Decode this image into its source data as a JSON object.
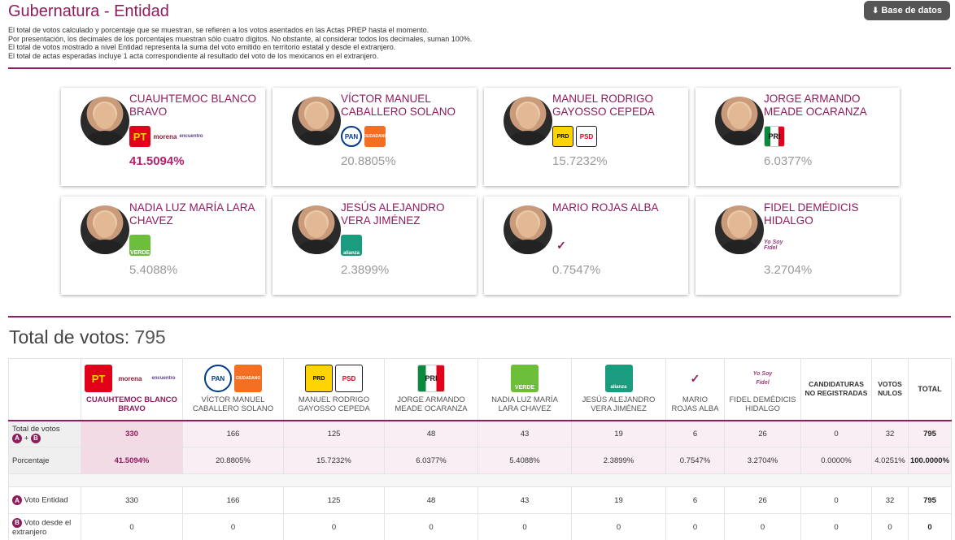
{
  "header": {
    "title_main": "Gubernatura",
    "title_sep": " - ",
    "title_sub": "Entidad",
    "notes": [
      "El total de votos calculado y porcentaje que se muestran, se refieren a los votos asentados en las Actas PREP hasta el momento.",
      "Por presentación, los decimales de los porcentajes muestran sólo cuatro dígitos. No obstante, al considerar todos los decimales, suman 100%.",
      "El total de votos mostrado a nivel Entidad representa la suma del voto emitido en territorio estatal y desde el extranjero.",
      "El total de actas esperadas incluye 1 acta correspondiente al resultado del voto de los mexicanos en el extranjero."
    ],
    "download_icon": "download-icon",
    "download_label": "Base de datos"
  },
  "candidates": [
    {
      "name": "CUAUHTEMOC BLANCO BRAVO",
      "pct": "41.5094%",
      "logos": [
        {
          "type": "pt",
          "text": "PT"
        },
        {
          "type": "morena",
          "text": "morena"
        },
        {
          "type": "pes",
          "text": "encuentro"
        }
      ]
    },
    {
      "name": "VÍCTOR MANUEL CABALLERO SOLANO",
      "pct": "20.8805%",
      "logos": [
        {
          "type": "pan",
          "text": "PAN"
        },
        {
          "type": "mc",
          "text": "CIUDADANO"
        }
      ]
    },
    {
      "name": "MANUEL RODRIGO GAYOSSO CEPEDA",
      "pct": "15.7232%",
      "logos": [
        {
          "type": "prd",
          "text": "PRD"
        },
        {
          "type": "psd",
          "text": "PSD"
        }
      ]
    },
    {
      "name": "JORGE ARMANDO MEADE OCARANZA",
      "pct": "6.0377%",
      "logos": [
        {
          "type": "pri",
          "text": "PRI"
        }
      ]
    },
    {
      "name": "NADIA LUZ MARÍA LARA CHAVEZ",
      "pct": "5.4088%",
      "logos": [
        {
          "type": "verde",
          "text": "VERDE"
        }
      ]
    },
    {
      "name": "JESÚS ALEJANDRO VERA JIMÉNEZ",
      "pct": "2.3899%",
      "logos": [
        {
          "type": "alianza",
          "text": "alianza"
        }
      ]
    },
    {
      "name": "MARIO ROJAS ALBA",
      "pct": "0.7547%",
      "logos": [
        {
          "type": "humanista",
          "text": "✓"
        }
      ]
    },
    {
      "name": "FIDEL DEMÉDICIS HIDALGO",
      "pct": "3.2704%",
      "logos": [
        {
          "type": "yosoy",
          "text": "Yo Soy Fidel"
        }
      ]
    }
  ],
  "totals": {
    "label": "Total de votos:",
    "value": "795"
  },
  "table": {
    "headers": [
      "CUAUHTEMOC BLANCO BRAVO",
      "VÍCTOR MANUEL CABALLERO SOLANO",
      "MANUEL RODRIGO GAYOSSO CEPEDA",
      "JORGE ARMANDO MEADE OCARANZA",
      "NADIA LUZ MARÍA LARA CHAVEZ",
      "JESÚS ALEJANDRO VERA JIMÉNEZ",
      "MARIO ROJAS ALBA",
      "FIDEL DEMÉDICIS HIDALGO",
      "CANDIDATURAS NO REGISTRADAS",
      "VOTOS NULOS",
      "TOTAL"
    ],
    "rows": {
      "total_votos": {
        "label": "Total de votos",
        "badge_a": "A",
        "plus": "+",
        "badge_b": "B",
        "values": [
          "330",
          "166",
          "125",
          "48",
          "43",
          "19",
          "6",
          "26",
          "0",
          "32",
          "795"
        ]
      },
      "porcentaje": {
        "label": "Porcentaje",
        "values": [
          "41.5094%",
          "20.8805%",
          "15.7232%",
          "6.0377%",
          "5.4088%",
          "2.3899%",
          "0.7547%",
          "3.2704%",
          "0.0000%",
          "4.0251%",
          "100.0000%"
        ]
      },
      "voto_entidad": {
        "badge": "A",
        "label": "Voto Entidad",
        "values": [
          "330",
          "166",
          "125",
          "48",
          "43",
          "19",
          "6",
          "26",
          "0",
          "32",
          "795"
        ]
      },
      "voto_extranjero": {
        "badge": "B",
        "label": "Voto desde el extranjero",
        "values": [
          "0",
          "0",
          "0",
          "0",
          "0",
          "0",
          "0",
          "0",
          "0",
          "0",
          "0"
        ]
      }
    }
  },
  "colors": {
    "accent": "#8e1c5e",
    "winner_pct": "#b5226e",
    "button_bg": "#555555"
  }
}
